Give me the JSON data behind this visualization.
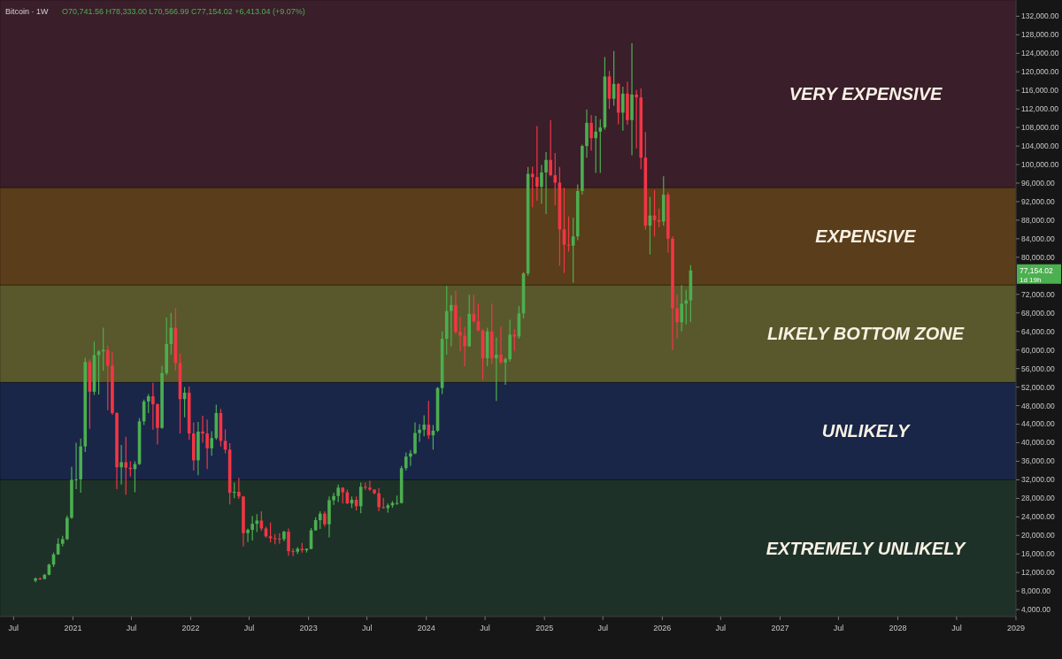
{
  "chart_data": {
    "type": "candlestick",
    "title": "Bitcoin · 1W",
    "annotations": [
      "O70,741.56 H78,333.00 L70,566.99 C77,154.02 +6,413.04 (+9.07%)",
      "77,154.02",
      "1d 19h"
    ],
    "xlim": [
      "2020-05-20",
      "2029-01-01"
    ],
    "xticks": [
      {
        "value": "2020-07-01",
        "label": "Jul"
      },
      {
        "value": "2021-01-01",
        "label": "2021"
      },
      {
        "value": "2021-07-01",
        "label": "Jul"
      },
      {
        "value": "2022-01-01",
        "label": "2022"
      },
      {
        "value": "2022-07-01",
        "label": "Jul"
      },
      {
        "value": "2023-01-01",
        "label": "2023"
      },
      {
        "value": "2023-07-01",
        "label": "Jul"
      },
      {
        "value": "2024-01-01",
        "label": "2024"
      },
      {
        "value": "2024-07-01",
        "label": "Jul"
      },
      {
        "value": "2025-01-01",
        "label": "2025"
      },
      {
        "value": "2025-07-01",
        "label": "Jul"
      },
      {
        "value": "2026-01-01",
        "label": "2026"
      },
      {
        "value": "2026-07-01",
        "label": "Jul"
      },
      {
        "value": "2027-01-01",
        "label": "2027"
      },
      {
        "value": "2027-07-01",
        "label": "Jul"
      },
      {
        "value": "2028-01-01",
        "label": "2028"
      },
      {
        "value": "2028-07-01",
        "label": "Jul"
      },
      {
        "value": "2029-01-01",
        "label": "2029"
      }
    ],
    "ylim": [
      2500,
      135500
    ],
    "yticks": [
      {
        "value": 4000,
        "label": "4,000.00"
      },
      {
        "value": 8000,
        "label": "8,000.00"
      },
      {
        "value": 12000,
        "label": "12,000.00"
      },
      {
        "value": 16000,
        "label": "16,000.00"
      },
      {
        "value": 20000,
        "label": "20,000.00"
      },
      {
        "value": 24000,
        "label": "24,000.00"
      },
      {
        "value": 28000,
        "label": "28,000.00"
      },
      {
        "value": 32000,
        "label": "32,000.00"
      },
      {
        "value": 36000,
        "label": "36,000.00"
      },
      {
        "value": 40000,
        "label": "40,000.00"
      },
      {
        "value": 44000,
        "label": "44,000.00"
      },
      {
        "value": 48000,
        "label": "48,000.00"
      },
      {
        "value": 52000,
        "label": "52,000.00"
      },
      {
        "value": 56000,
        "label": "56,000.00"
      },
      {
        "value": 60000,
        "label": "60,000.00"
      },
      {
        "value": 64000,
        "label": "64,000.00"
      },
      {
        "value": 68000,
        "label": "68,000.00"
      },
      {
        "value": 72000,
        "label": "72,000.00"
      },
      {
        "value": 80000,
        "label": "80,000.00"
      },
      {
        "value": 84000,
        "label": "84,000.00"
      },
      {
        "value": 88000,
        "label": "88,000.00"
      },
      {
        "value": 92000,
        "label": "92,000.00"
      },
      {
        "value": 96000,
        "label": "96,000.00"
      },
      {
        "value": 100000,
        "label": "100,000.00"
      },
      {
        "value": 104000,
        "label": "104,000.00"
      },
      {
        "value": 108000,
        "label": "108,000.00"
      },
      {
        "value": 112000,
        "label": "112,000.00"
      },
      {
        "value": 116000,
        "label": "116,000.00"
      },
      {
        "value": 120000,
        "label": "120,000.00"
      },
      {
        "value": 124000,
        "label": "124,000.00"
      },
      {
        "value": 128000,
        "label": "128,000.00"
      },
      {
        "value": 132000,
        "label": "132,000.00"
      }
    ],
    "tick_labels": "xy",
    "bands": [
      {
        "axis": "y",
        "from": 95000,
        "to": 135500,
        "label": "VERY EXPENSIVE",
        "color": "#3a1e2a"
      },
      {
        "axis": "y",
        "from": 74000,
        "to": 95000,
        "label": "EXPENSIVE",
        "color": "#5a3d1a"
      },
      {
        "axis": "y",
        "from": 53000,
        "to": 74000,
        "label": "LIKELY BOTTOM ZONE",
        "color": "#59582c"
      },
      {
        "axis": "y",
        "from": 32000,
        "to": 53000,
        "label": "UNLIKELY",
        "color": "#1a2648"
      },
      {
        "axis": "y",
        "from": 2500,
        "to": 32000,
        "label": "EXTREMELY UNLIKELY",
        "color": "#1e3128"
      }
    ],
    "x": [
      "2020-09-07",
      "2020-09-21",
      "2020-10-05",
      "2020-10-19",
      "2020-11-02",
      "2020-11-16",
      "2020-11-30",
      "2020-12-14",
      "2020-12-28",
      "2021-01-11",
      "2021-01-25",
      "2021-02-08",
      "2021-02-22",
      "2021-03-08",
      "2021-03-22",
      "2021-04-05",
      "2021-04-19",
      "2021-05-03",
      "2021-05-17",
      "2021-05-31",
      "2021-06-14",
      "2021-06-28",
      "2021-07-12",
      "2021-07-26",
      "2021-08-09",
      "2021-08-23",
      "2021-09-06",
      "2021-09-20",
      "2021-10-04",
      "2021-10-18",
      "2021-11-01",
      "2021-11-15",
      "2021-11-29",
      "2021-12-13",
      "2021-12-27",
      "2022-01-10",
      "2022-01-24",
      "2022-02-07",
      "2022-02-21",
      "2022-03-07",
      "2022-03-21",
      "2022-04-04",
      "2022-04-18",
      "2022-05-02",
      "2022-05-16",
      "2022-05-30",
      "2022-06-13",
      "2022-06-27",
      "2022-07-11",
      "2022-07-25",
      "2022-08-08",
      "2022-08-22",
      "2022-09-05",
      "2022-09-19",
      "2022-10-03",
      "2022-10-17",
      "2022-10-31",
      "2022-11-14",
      "2022-11-28",
      "2022-12-12",
      "2022-12-26",
      "2023-01-09",
      "2023-01-23",
      "2023-02-06",
      "2023-02-20",
      "2023-03-06",
      "2023-03-20",
      "2023-04-03",
      "2023-04-17",
      "2023-05-01",
      "2023-05-15",
      "2023-05-29",
      "2023-06-12",
      "2023-06-26",
      "2023-07-10",
      "2023-07-24",
      "2023-08-07",
      "2023-08-21",
      "2023-09-04",
      "2023-09-18",
      "2023-10-02",
      "2023-10-16",
      "2023-10-30",
      "2023-11-13",
      "2023-11-27",
      "2023-12-11",
      "2023-12-25",
      "2024-01-08",
      "2024-01-22",
      "2024-02-05",
      "2024-02-19",
      "2024-03-04",
      "2024-03-18",
      "2024-04-01",
      "2024-04-15",
      "2024-04-29",
      "2024-05-13",
      "2024-05-27",
      "2024-06-10",
      "2024-06-24",
      "2024-07-08",
      "2024-07-22",
      "2024-08-05",
      "2024-08-19",
      "2024-09-02",
      "2024-09-16",
      "2024-09-30",
      "2024-10-14",
      "2024-10-28",
      "2024-11-11",
      "2024-11-25",
      "2024-12-09",
      "2024-12-23",
      "2025-01-06",
      "2025-01-20",
      "2025-02-03",
      "2025-02-17",
      "2025-03-03",
      "2025-03-17",
      "2025-03-31",
      "2025-04-14",
      "2025-04-28",
      "2025-05-12",
      "2025-05-26",
      "2025-06-09",
      "2025-06-23",
      "2025-07-07",
      "2025-07-21",
      "2025-08-04",
      "2025-08-18",
      "2025-09-01",
      "2025-09-15",
      "2025-09-29",
      "2025-10-13",
      "2025-10-27",
      "2025-11-10",
      "2025-11-24",
      "2025-12-08",
      "2025-12-22",
      "2026-01-05",
      "2026-01-19",
      "2026-02-02",
      "2026-02-16",
      "2026-03-02",
      "2026-03-16",
      "2026-03-30"
    ],
    "ohlc": [
      [
        10250,
        10950,
        9900,
        10700
      ],
      [
        10700,
        10950,
        10400,
        10600
      ],
      [
        10600,
        11700,
        10550,
        11500
      ],
      [
        11500,
        13900,
        11400,
        13700
      ],
      [
        13700,
        16300,
        13200,
        15900
      ],
      [
        15900,
        19400,
        15800,
        18200
      ],
      [
        18200,
        19900,
        17600,
        19200
      ],
      [
        19200,
        24300,
        19000,
        23800
      ],
      [
        23800,
        34800,
        23600,
        32000
      ],
      [
        32000,
        40000,
        30000,
        32100
      ],
      [
        32100,
        40900,
        29200,
        39200
      ],
      [
        39200,
        58300,
        38000,
        57400
      ],
      [
        57400,
        58000,
        43000,
        51000
      ],
      [
        51000,
        61800,
        50300,
        58900
      ],
      [
        58900,
        60000,
        50400,
        59700
      ],
      [
        59700,
        64800,
        55500,
        60000
      ],
      [
        60000,
        61000,
        47000,
        56600
      ],
      [
        56600,
        59500,
        46000,
        46400
      ],
      [
        46400,
        46600,
        30000,
        34700
      ],
      [
        34700,
        39500,
        31000,
        35800
      ],
      [
        35800,
        41300,
        28800,
        34600
      ],
      [
        34600,
        36000,
        32700,
        34300
      ],
      [
        34300,
        36000,
        29300,
        35400
      ],
      [
        35400,
        45300,
        35200,
        44600
      ],
      [
        44600,
        49300,
        43800,
        48900
      ],
      [
        48900,
        50500,
        46400,
        50000
      ],
      [
        50000,
        52900,
        42800,
        48300
      ],
      [
        48300,
        48500,
        39600,
        43200
      ],
      [
        43200,
        56600,
        43000,
        55000
      ],
      [
        55000,
        67000,
        54600,
        61300
      ],
      [
        61300,
        68000,
        59000,
        64800
      ],
      [
        64800,
        69000,
        55600,
        57200
      ],
      [
        57200,
        59200,
        42000,
        49400
      ],
      [
        49400,
        52000,
        45500,
        50800
      ],
      [
        50800,
        52100,
        40600,
        42000
      ],
      [
        42000,
        44400,
        34000,
        36200
      ],
      [
        36200,
        44500,
        33000,
        42400
      ],
      [
        42400,
        45800,
        40000,
        42000
      ],
      [
        42000,
        45000,
        34300,
        38800
      ],
      [
        38800,
        42500,
        37200,
        41000
      ],
      [
        41000,
        48200,
        40600,
        46400
      ],
      [
        46400,
        47300,
        39200,
        40400
      ],
      [
        40400,
        42900,
        37700,
        38500
      ],
      [
        38500,
        39900,
        26700,
        29200
      ],
      [
        29200,
        31400,
        28000,
        29400
      ],
      [
        29400,
        32400,
        27900,
        28400
      ],
      [
        28400,
        28500,
        17600,
        20500
      ],
      [
        20500,
        21500,
        18600,
        21200
      ],
      [
        21200,
        24200,
        18900,
        22500
      ],
      [
        22500,
        24600,
        20700,
        23200
      ],
      [
        23200,
        25200,
        21000,
        21500
      ],
      [
        21500,
        21900,
        19500,
        19800
      ],
      [
        19800,
        22800,
        18500,
        19400
      ],
      [
        19400,
        20300,
        18100,
        19300
      ],
      [
        19300,
        20500,
        18200,
        19200
      ],
      [
        19200,
        21000,
        18700,
        20800
      ],
      [
        20800,
        21500,
        15600,
        16600
      ],
      [
        16600,
        17200,
        15500,
        16500
      ],
      [
        16500,
        17500,
        16000,
        17100
      ],
      [
        17100,
        18400,
        16300,
        16800
      ],
      [
        16800,
        17200,
        16300,
        17100
      ],
      [
        17100,
        21600,
        17000,
        21100
      ],
      [
        21100,
        23900,
        21000,
        23300
      ],
      [
        23300,
        25200,
        21400,
        24700
      ],
      [
        24700,
        25200,
        21900,
        22400
      ],
      [
        22400,
        28400,
        19600,
        27600
      ],
      [
        27600,
        29200,
        26600,
        28500
      ],
      [
        28500,
        31000,
        27200,
        30300
      ],
      [
        30300,
        30400,
        26900,
        29300
      ],
      [
        29300,
        29900,
        26800,
        26900
      ],
      [
        26900,
        28400,
        25900,
        27700
      ],
      [
        27700,
        28400,
        25400,
        26300
      ],
      [
        26300,
        31400,
        24800,
        30500
      ],
      [
        30500,
        31400,
        29800,
        30300
      ],
      [
        30300,
        31800,
        29600,
        29900
      ],
      [
        29900,
        30000,
        28900,
        29100
      ],
      [
        29100,
        30200,
        25200,
        26100
      ],
      [
        26100,
        28100,
        25800,
        25900
      ],
      [
        25900,
        26900,
        24900,
        26500
      ],
      [
        26500,
        27400,
        26000,
        27000
      ],
      [
        27000,
        28600,
        26600,
        27000
      ],
      [
        27000,
        35000,
        26900,
        34500
      ],
      [
        34500,
        37900,
        34000,
        37000
      ],
      [
        37000,
        38400,
        35000,
        37700
      ],
      [
        37700,
        44400,
        37500,
        42100
      ],
      [
        42100,
        44000,
        40200,
        42800
      ],
      [
        42800,
        45900,
        41400,
        43900
      ],
      [
        43900,
        49000,
        40800,
        41600
      ],
      [
        41600,
        43800,
        38500,
        42600
      ],
      [
        42600,
        52000,
        42300,
        51800
      ],
      [
        51800,
        64000,
        50500,
        62400
      ],
      [
        62400,
        73800,
        59000,
        68400
      ],
      [
        68400,
        71800,
        60800,
        69700
      ],
      [
        69700,
        72800,
        63500,
        63900
      ],
      [
        63900,
        67200,
        59700,
        63100
      ],
      [
        63100,
        65000,
        56500,
        60800
      ],
      [
        60800,
        71900,
        60700,
        67800
      ],
      [
        67800,
        71900,
        65900,
        66200
      ],
      [
        66200,
        70000,
        64000,
        64200
      ],
      [
        64200,
        64500,
        53500,
        58200
      ],
      [
        58200,
        64800,
        56500,
        64000
      ],
      [
        64000,
        70000,
        57000,
        58200
      ],
      [
        58200,
        62700,
        49000,
        59000
      ],
      [
        59000,
        65000,
        57000,
        57300
      ],
      [
        57300,
        58400,
        52500,
        58000
      ],
      [
        58000,
        66500,
        57500,
        63300
      ],
      [
        63300,
        64500,
        59800,
        62900
      ],
      [
        62900,
        69500,
        62400,
        67900
      ],
      [
        67900,
        76800,
        66800,
        76500
      ],
      [
        76500,
        99500,
        76000,
        98000
      ],
      [
        98000,
        99600,
        90800,
        97300
      ],
      [
        97300,
        108300,
        92200,
        95200
      ],
      [
        95200,
        99900,
        91500,
        98300
      ],
      [
        98300,
        102700,
        89300,
        101000
      ],
      [
        101000,
        109600,
        97500,
        97700
      ],
      [
        97700,
        102500,
        91200,
        96100
      ],
      [
        96100,
        99500,
        78200,
        86000
      ],
      [
        86000,
        95000,
        76600,
        82700
      ],
      [
        82700,
        88800,
        81200,
        82500
      ],
      [
        82500,
        88500,
        74500,
        84500
      ],
      [
        84500,
        95700,
        83700,
        94300
      ],
      [
        94300,
        104300,
        93500,
        104000
      ],
      [
        104000,
        111900,
        101500,
        109000
      ],
      [
        109000,
        110700,
        103000,
        105700
      ],
      [
        105700,
        110500,
        98200,
        107100
      ],
      [
        107100,
        109800,
        98200,
        108000
      ],
      [
        108000,
        123200,
        107500,
        119000
      ],
      [
        119000,
        120200,
        112000,
        114200
      ],
      [
        114200,
        124500,
        112700,
        117400
      ],
      [
        117400,
        117600,
        108700,
        111200
      ],
      [
        111200,
        116800,
        107300,
        115300
      ],
      [
        115300,
        117900,
        108600,
        109600
      ],
      [
        109600,
        126200,
        102000,
        115100
      ],
      [
        115100,
        116100,
        103500,
        114500
      ],
      [
        114500,
        116400,
        99000,
        101500
      ],
      [
        101500,
        107000,
        86000,
        86800
      ],
      [
        86800,
        93000,
        80600,
        89000
      ],
      [
        89000,
        94500,
        84500,
        88000
      ],
      [
        88000,
        90500,
        86500,
        87700
      ],
      [
        87700,
        97500,
        86800,
        93500
      ],
      [
        93500,
        94000,
        81000,
        84000
      ],
      [
        84000,
        84500,
        60000,
        69000
      ],
      [
        69000,
        72000,
        62500,
        66000
      ],
      [
        66000,
        74000,
        64000,
        70000
      ],
      [
        70000,
        73000,
        65500,
        70700
      ],
      [
        70700,
        78300,
        66000,
        77154.02
      ]
    ]
  }
}
